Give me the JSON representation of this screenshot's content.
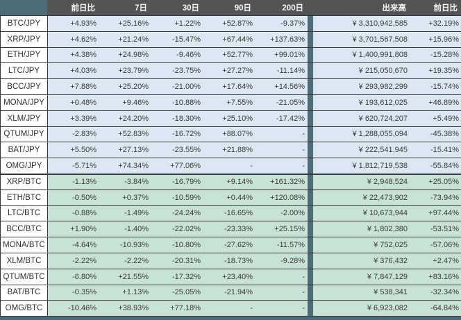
{
  "colors": {
    "teal": "#4e6c77",
    "header_bg": "#535456",
    "header_text": "#f7f7f7",
    "jpy_row_bg": "#dbe8f3",
    "btc_row_bg": "#c8e3d5",
    "label_bg": "#ffffff",
    "border": "#33383c",
    "text": "#3a3a3a"
  },
  "chart_data": {
    "type": "table",
    "column_headers": [
      "前日比",
      "7日",
      "30日",
      "90日",
      "200日",
      "出来高",
      "前日比"
    ],
    "change_period_headers": [
      "前日比",
      "7日",
      "30日",
      "90日",
      "200日"
    ],
    "volume_header": "出来高",
    "volume_change_header": "前日比",
    "sections": [
      {
        "quote": "JPY",
        "rows": [
          {
            "pair": "BTC/JPY",
            "changes": [
              "+4.93%",
              "+25.16%",
              "+1.22%",
              "+52.87%",
              "-9.37%"
            ],
            "volume": "¥ 3,310,942,585",
            "volume_change": "+32.19%"
          },
          {
            "pair": "XRP/JPY",
            "changes": [
              "+4.62%",
              "+21.24%",
              "-15.47%",
              "+67.44%",
              "+137.63%"
            ],
            "volume": "¥ 3,701,567,508",
            "volume_change": "+15.96%"
          },
          {
            "pair": "ETH/JPY",
            "changes": [
              "+4.38%",
              "+24.98%",
              "-9.46%",
              "+52.77%",
              "+99.01%"
            ],
            "volume": "¥ 1,400,991,808",
            "volume_change": "-15.28%"
          },
          {
            "pair": "LTC/JPY",
            "changes": [
              "+4.03%",
              "+23.79%",
              "-23.75%",
              "+27.27%",
              "-11.14%"
            ],
            "volume": "¥ 215,050,670",
            "volume_change": "+19.35%"
          },
          {
            "pair": "BCC/JPY",
            "changes": [
              "+7.88%",
              "+25.20%",
              "-21.00%",
              "+17.64%",
              "+14.56%"
            ],
            "volume": "¥ 293,982,299",
            "volume_change": "-15.74%"
          },
          {
            "pair": "MONA/JPY",
            "changes": [
              "+0.48%",
              "+9.46%",
              "-10.88%",
              "+7.55%",
              "-21.05%"
            ],
            "volume": "¥ 193,612,025",
            "volume_change": "+46.89%"
          },
          {
            "pair": "XLM/JPY",
            "changes": [
              "+3.39%",
              "+24.20%",
              "-18.30%",
              "+25.10%",
              "-17.42%"
            ],
            "volume": "¥ 620,724,207",
            "volume_change": "+5.49%"
          },
          {
            "pair": "QTUM/JPY",
            "changes": [
              "-2.83%",
              "+52.83%",
              "-16.72%",
              "+88.07%",
              "-"
            ],
            "volume": "¥ 1,288,055,094",
            "volume_change": "-45.38%"
          },
          {
            "pair": "BAT/JPY",
            "changes": [
              "+5.50%",
              "+27.13%",
              "-23.55%",
              "+21.88%",
              "-"
            ],
            "volume": "¥ 222,541,945",
            "volume_change": "-15.41%"
          },
          {
            "pair": "OMG/JPY",
            "changes": [
              "-5.71%",
              "+74.34%",
              "+77.06%",
              "-",
              "-"
            ],
            "volume": "¥ 1,812,719,538",
            "volume_change": "-55.84%"
          }
        ]
      },
      {
        "quote": "BTC",
        "rows": [
          {
            "pair": "XRP/BTC",
            "changes": [
              "-1.13%",
              "-3.84%",
              "-16.79%",
              "+9.14%",
              "+161.32%"
            ],
            "volume": "¥ 2,948,524",
            "volume_change": "+25.05%"
          },
          {
            "pair": "ETH/BTC",
            "changes": [
              "-0.50%",
              "+0.37%",
              "-10.59%",
              "+0.44%",
              "+120.08%"
            ],
            "volume": "¥ 22,473,902",
            "volume_change": "-73.94%"
          },
          {
            "pair": "LTC/BTC",
            "changes": [
              "-0.88%",
              "-1.49%",
              "-24.24%",
              "-16.65%",
              "-2.00%"
            ],
            "volume": "¥ 10,673,944",
            "volume_change": "+97.44%"
          },
          {
            "pair": "BCC/BTC",
            "changes": [
              "+1.90%",
              "-1.40%",
              "-22.02%",
              "-23.33%",
              "+25.15%"
            ],
            "volume": "¥ 1,802,380",
            "volume_change": "-53.51%"
          },
          {
            "pair": "MONA/BTC",
            "changes": [
              "-4.64%",
              "-10.93%",
              "-10.80%",
              "-27.62%",
              "-11.57%"
            ],
            "volume": "¥ 752,025",
            "volume_change": "-57.06%"
          },
          {
            "pair": "XLM/BTC",
            "changes": [
              "-2.22%",
              "-2.22%",
              "-20.31%",
              "-18.73%",
              "-9.28%"
            ],
            "volume": "¥ 376,432",
            "volume_change": "+2.47%"
          },
          {
            "pair": "QTUM/BTC",
            "changes": [
              "-6.80%",
              "+21.55%",
              "-17.32%",
              "+23.40%",
              "-"
            ],
            "volume": "¥ 7,847,129",
            "volume_change": "+83.16%"
          },
          {
            "pair": "BAT/BTC",
            "changes": [
              "-0.35%",
              "+1.13%",
              "-25.05%",
              "-21.94%",
              "-"
            ],
            "volume": "¥ 538,341",
            "volume_change": "-32.34%"
          },
          {
            "pair": "OMG/BTC",
            "changes": [
              "-10.46%",
              "+38.93%",
              "+77.18%",
              "-",
              "-"
            ],
            "volume": "¥ 6,923,082",
            "volume_change": "-64.84%"
          }
        ]
      }
    ]
  }
}
